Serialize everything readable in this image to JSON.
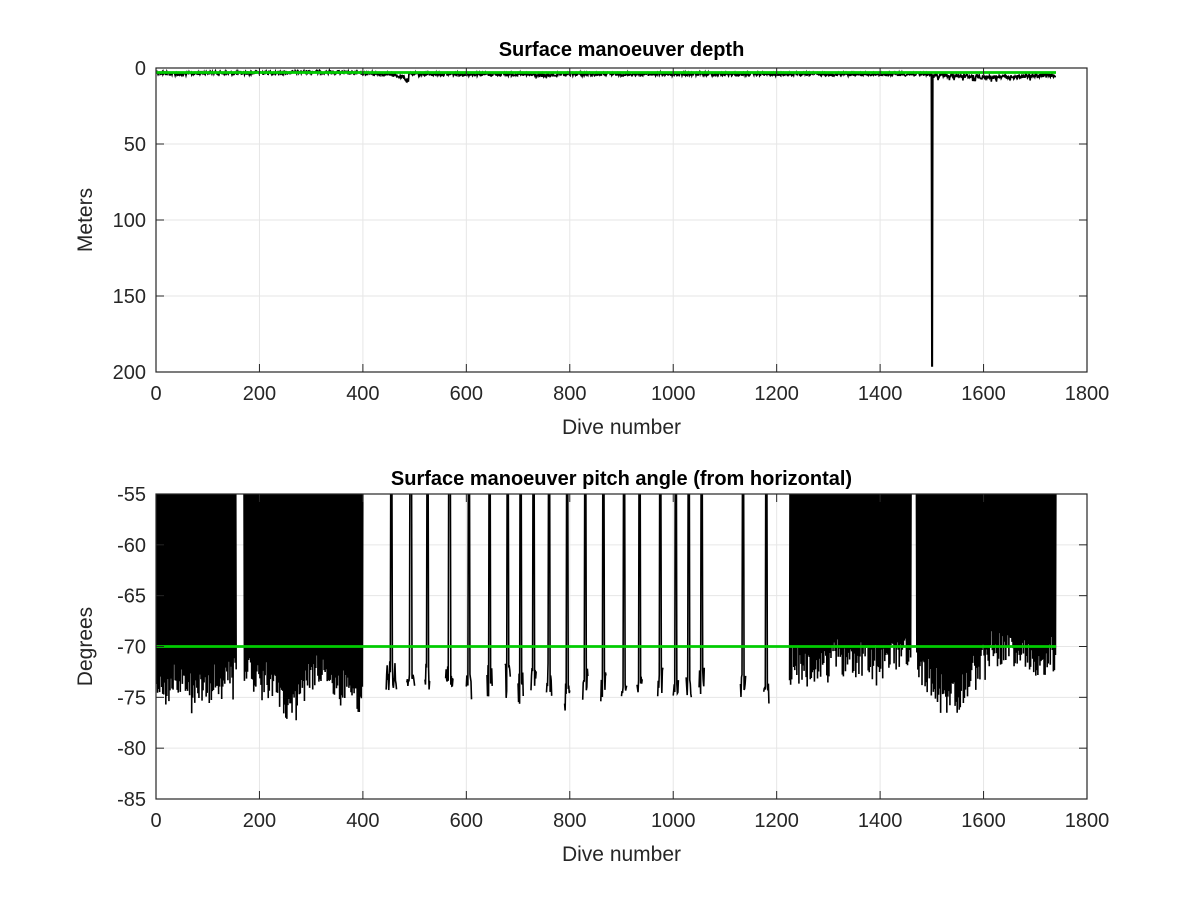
{
  "chart_data": [
    {
      "type": "line",
      "title": "Surface manoeuver depth",
      "xlabel": "Dive number",
      "ylabel": "Meters",
      "xlim": [
        0,
        1800
      ],
      "ylim": [
        0,
        200
      ],
      "y_reversed": true,
      "xticks": [
        "0",
        "200",
        "400",
        "600",
        "800",
        "1000",
        "1200",
        "1400",
        "1600",
        "1800"
      ],
      "yticks": [
        "0",
        "50",
        "100",
        "150",
        "200"
      ],
      "grid": true,
      "series": [
        {
          "color": "#000000",
          "description_points": [
            [
              1,
              3
            ],
            [
              50,
              4
            ],
            [
              100,
              3
            ],
            [
              150,
              3.5
            ],
            [
              200,
              3
            ],
            [
              250,
              3
            ],
            [
              300,
              2.5
            ],
            [
              350,
              3
            ],
            [
              400,
              3.5
            ],
            [
              450,
              4
            ],
            [
              480,
              6
            ],
            [
              485,
              9
            ],
            [
              490,
              4
            ],
            [
              550,
              4
            ],
            [
              600,
              4
            ],
            [
              650,
              4
            ],
            [
              700,
              4
            ],
            [
              750,
              5
            ],
            [
              800,
              4
            ],
            [
              850,
              4
            ],
            [
              900,
              4
            ],
            [
              950,
              4
            ],
            [
              1000,
              4
            ],
            [
              1050,
              4
            ],
            [
              1100,
              4
            ],
            [
              1150,
              4
            ],
            [
              1200,
              4
            ],
            [
              1250,
              4
            ],
            [
              1300,
              4
            ],
            [
              1350,
              4
            ],
            [
              1400,
              4
            ],
            [
              1450,
              4
            ],
            [
              1495,
              4
            ],
            [
              1500,
              196
            ],
            [
              1505,
              5
            ],
            [
              1550,
              5
            ],
            [
              1600,
              6
            ],
            [
              1650,
              6
            ],
            [
              1700,
              5
            ],
            [
              1740,
              5
            ]
          ]
        },
        {
          "color": "#00cc00",
          "reference_line": 3,
          "x_range": [
            1,
            1740
          ]
        }
      ]
    },
    {
      "type": "line",
      "title": "Surface manoeuver pitch angle (from horizontal)",
      "xlabel": "Dive number",
      "ylabel": "Degrees",
      "xlim": [
        0,
        1800
      ],
      "ylim": [
        -85,
        -55
      ],
      "xticks": [
        "0",
        "200",
        "400",
        "600",
        "800",
        "1000",
        "1200",
        "1400",
        "1600",
        "1800"
      ],
      "yticks": [
        "-55",
        "-60",
        "-65",
        "-70",
        "-75",
        "-80",
        "-85"
      ],
      "grid": true,
      "series": [
        {
          "color": "#000000",
          "dense_blocks": [
            [
              1,
              155
            ],
            [
              170,
              400
            ],
            [
              1225,
              1460
            ],
            [
              1470,
              1740
            ]
          ],
          "spikes": [
            [
              445,
              465
            ],
            [
              485,
              500
            ],
            [
              520,
              530
            ],
            [
              560,
              575
            ],
            [
              600,
              610
            ],
            [
              640,
              650
            ],
            [
              675,
              685
            ],
            [
              700,
              710
            ],
            [
              725,
              735
            ],
            [
              755,
              765
            ],
            [
              790,
              800
            ],
            [
              825,
              835
            ],
            [
              860,
              870
            ],
            [
              900,
              910
            ],
            [
              930,
              940
            ],
            [
              970,
              980
            ],
            [
              1000,
              1010
            ],
            [
              1025,
              1035
            ],
            [
              1050,
              1060
            ],
            [
              1130,
              1140
            ],
            [
              1175,
              1185
            ]
          ],
          "min_envelope": [
            [
              1,
              -75
            ],
            [
              50,
              -74.5
            ],
            [
              80,
              -75.5
            ],
            [
              120,
              -74.5
            ],
            [
              150,
              -74
            ],
            [
              170,
              -73
            ],
            [
              220,
              -75
            ],
            [
              265,
              -76.5
            ],
            [
              300,
              -74
            ],
            [
              350,
              -74.5
            ],
            [
              380,
              -75.5
            ],
            [
              410,
              -76.5
            ],
            [
              450,
              -74
            ],
            [
              500,
              -74
            ],
            [
              550,
              -74
            ],
            [
              600,
              -74
            ],
            [
              620,
              -75
            ],
            [
              650,
              -74
            ],
            [
              700,
              -74.5
            ],
            [
              750,
              -74
            ],
            [
              790,
              -76
            ],
            [
              840,
              -74
            ],
            [
              900,
              -74.5
            ],
            [
              950,
              -74
            ],
            [
              1000,
              -75
            ],
            [
              1050,
              -74
            ],
            [
              1100,
              -72
            ],
            [
              1140,
              -75
            ],
            [
              1180,
              -75.5
            ],
            [
              1230,
              -73
            ],
            [
              1300,
              -72.5
            ],
            [
              1350,
              -72
            ],
            [
              1400,
              -73
            ],
            [
              1450,
              -71
            ],
            [
              1500,
              -75
            ],
            [
              1550,
              -76.5
            ],
            [
              1600,
              -72
            ],
            [
              1650,
              -71
            ],
            [
              1700,
              -73
            ],
            [
              1740,
              -72
            ]
          ]
        },
        {
          "color": "#00cc00",
          "reference_line": -70,
          "x_range": [
            1,
            1740
          ]
        }
      ]
    }
  ]
}
